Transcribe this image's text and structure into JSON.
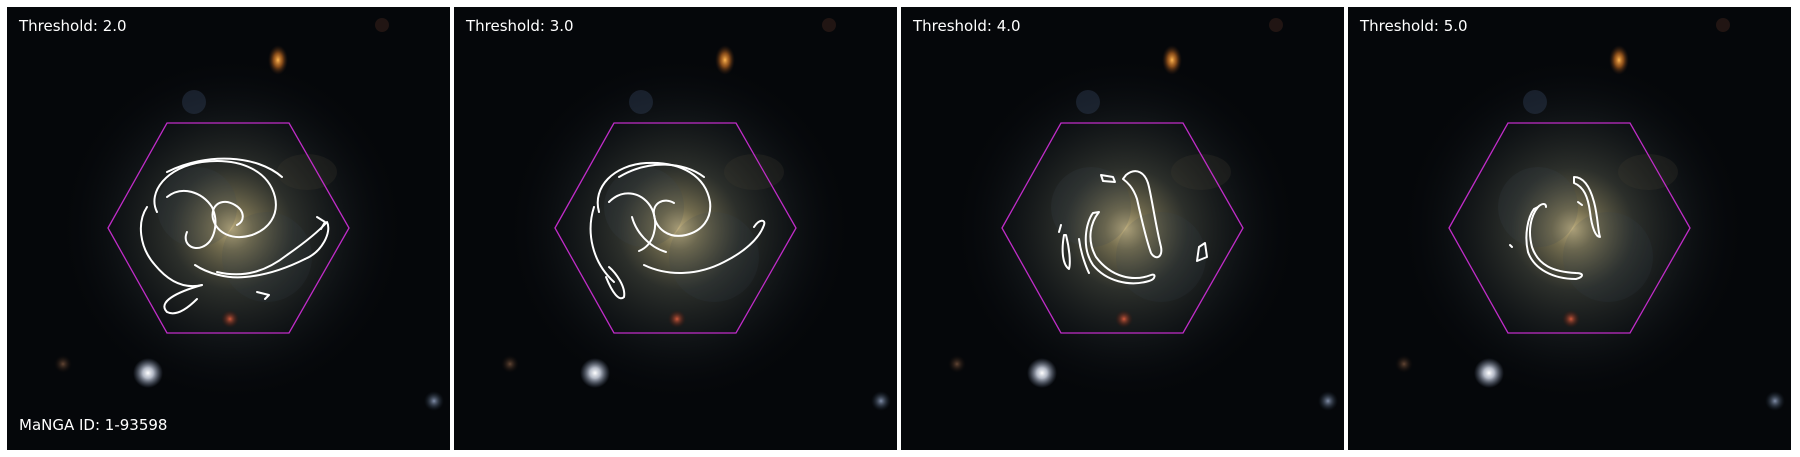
{
  "figure": {
    "panels": [
      {
        "threshold_label": "Threshold: 2.0"
      },
      {
        "threshold_label": "Threshold: 3.0"
      },
      {
        "threshold_label": "Threshold: 4.0"
      },
      {
        "threshold_label": "Threshold: 5.0"
      }
    ],
    "galaxy_id_label": "MaNGA ID: 1-93598"
  },
  "colors": {
    "hexagon": "#c02cc8",
    "contour": "#ffffff",
    "sky": "#05070a",
    "galaxy_core": "#b0a270"
  }
}
